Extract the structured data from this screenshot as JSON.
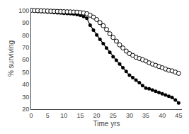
{
  "chart_data": {
    "type": "line",
    "xlabel": "Time yrs",
    "ylabel": "% surviving",
    "x": [
      0,
      1,
      2,
      3,
      4,
      5,
      6,
      7,
      8,
      9,
      10,
      11,
      12,
      13,
      14,
      15,
      16,
      17,
      18,
      19,
      20,
      21,
      22,
      23,
      24,
      25,
      26,
      27,
      28,
      29,
      30,
      31,
      32,
      33,
      34,
      35,
      36,
      37,
      38,
      39,
      40,
      41,
      42,
      43,
      44,
      45
    ],
    "series": [
      {
        "color": "#000000",
        "marker": "circle",
        "line_style": "solid",
        "values": [
          100,
          99.5,
          99.2,
          99.0,
          98.8,
          98.6,
          98.4,
          98.2,
          98.0,
          97.8,
          97.6,
          97.4,
          97.2,
          97.0,
          96.5,
          96.0,
          95.0,
          93.5,
          88.0,
          84.0,
          80.0,
          76.5,
          73.0,
          69.5,
          66.0,
          62.5,
          59.5,
          56.5,
          53.5,
          50.5,
          47.5,
          45.5,
          43.5,
          41.5,
          39.0,
          37.0,
          36.5,
          35.5,
          34.5,
          33.5,
          32.5,
          31.5,
          30.5,
          29.5,
          27.5,
          25.0
        ]
      },
      {
        "color": "#000000",
        "marker": "circle-open",
        "line_style": "solid",
        "values": [
          100,
          99.8,
          99.7,
          99.6,
          99.5,
          99.4,
          99.3,
          99.2,
          99.1,
          99.0,
          98.9,
          98.8,
          98.7,
          98.6,
          98.5,
          98.2,
          97.8,
          97.2,
          96.0,
          94.5,
          92.5,
          90.0,
          87.5,
          84.5,
          81.0,
          78.0,
          75.0,
          72.0,
          69.5,
          67.0,
          65.0,
          63.5,
          62.0,
          61.0,
          60.0,
          59.0,
          57.5,
          56.5,
          55.5,
          54.5,
          53.5,
          52.5,
          51.5,
          51.0,
          50.0,
          49.0
        ]
      }
    ],
    "xlim": [
      0,
      46
    ],
    "ylim": [
      20,
      102
    ],
    "xticks": [
      0,
      5,
      10,
      15,
      20,
      25,
      30,
      35,
      40,
      45
    ],
    "yticks": [
      20,
      30,
      40,
      50,
      60,
      70,
      80,
      90,
      100
    ],
    "grid": false
  }
}
